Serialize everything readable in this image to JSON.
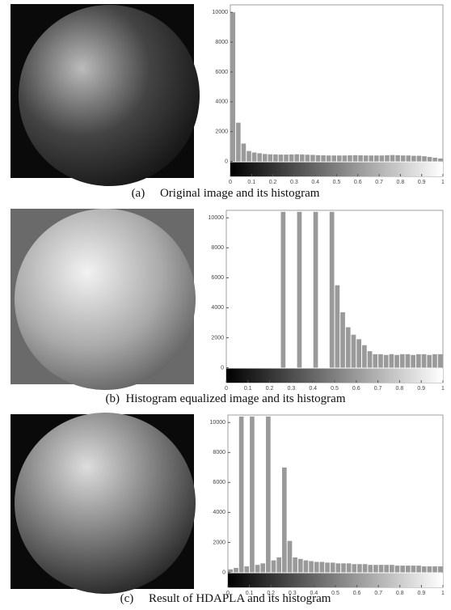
{
  "chart_data": [
    {
      "type": "histogram",
      "title": "(a)     Original image and its histogram",
      "color": "#9a9a9a",
      "bins": [
        0,
        0.025,
        0.05,
        0.075,
        0.1,
        0.125,
        0.15,
        0.175,
        0.2,
        0.225,
        0.25,
        0.275,
        0.3,
        0.325,
        0.35,
        0.375,
        0.4,
        0.425,
        0.45,
        0.475,
        0.5,
        0.525,
        0.55,
        0.575,
        0.6,
        0.625,
        0.65,
        0.675,
        0.7,
        0.725,
        0.75,
        0.775,
        0.8,
        0.825,
        0.85,
        0.875,
        0.9,
        0.925,
        0.95,
        0.975,
        1
      ],
      "values": [
        10000,
        2600,
        1200,
        700,
        600,
        550,
        500,
        480,
        470,
        460,
        460,
        470,
        480,
        470,
        450,
        440,
        420,
        410,
        400,
        400,
        400,
        400,
        410,
        420,
        410,
        400,
        400,
        400,
        400,
        420,
        430,
        420,
        400,
        400,
        380,
        380,
        350,
        300,
        250,
        200
      ],
      "xlim": [
        0,
        1
      ],
      "ylim": [
        -1000,
        10500
      ],
      "xticks": [
        0,
        0.1,
        0.2,
        0.3,
        0.4,
        0.5,
        0.6,
        0.7,
        0.8,
        0.9,
        1
      ],
      "yticks": [
        0,
        2000,
        4000,
        6000,
        8000,
        10000
      ]
    },
    {
      "type": "histogram",
      "title": "(b)  Histogram equalized image and its histogram",
      "color": "#9a9a9a",
      "bins": [
        0,
        0.025,
        0.05,
        0.075,
        0.1,
        0.125,
        0.15,
        0.175,
        0.2,
        0.225,
        0.25,
        0.275,
        0.3,
        0.325,
        0.35,
        0.375,
        0.4,
        0.425,
        0.45,
        0.475,
        0.5,
        0.525,
        0.55,
        0.575,
        0.6,
        0.625,
        0.65,
        0.675,
        0.7,
        0.725,
        0.75,
        0.775,
        0.8,
        0.825,
        0.85,
        0.875,
        0.9,
        0.925,
        0.95,
        0.975,
        1
      ],
      "values": [
        0,
        0,
        0,
        0,
        0,
        0,
        0,
        0,
        0,
        0,
        10400,
        0,
        0,
        10400,
        0,
        0,
        10400,
        0,
        0,
        10400,
        5500,
        3700,
        2700,
        2200,
        1900,
        1500,
        1100,
        900,
        900,
        850,
        900,
        850,
        900,
        900,
        850,
        900,
        900,
        850,
        900,
        900
      ],
      "xlim": [
        0,
        1
      ],
      "ylim": [
        -1000,
        10500
      ],
      "xticks": [
        0,
        0.1,
        0.2,
        0.3,
        0.4,
        0.5,
        0.6,
        0.7,
        0.8,
        0.9,
        1
      ],
      "yticks": [
        0,
        2000,
        4000,
        6000,
        8000,
        10000
      ]
    },
    {
      "type": "histogram",
      "title": "(c)     Result of HDAPLA and its histogram",
      "color": "#9a9a9a",
      "bins": [
        0,
        0.025,
        0.05,
        0.075,
        0.1,
        0.125,
        0.15,
        0.175,
        0.2,
        0.225,
        0.25,
        0.275,
        0.3,
        0.325,
        0.35,
        0.375,
        0.4,
        0.425,
        0.45,
        0.475,
        0.5,
        0.525,
        0.55,
        0.575,
        0.6,
        0.625,
        0.65,
        0.675,
        0.7,
        0.725,
        0.75,
        0.775,
        0.8,
        0.825,
        0.85,
        0.875,
        0.9,
        0.925,
        0.95,
        0.975,
        1
      ],
      "values": [
        200,
        300,
        10400,
        400,
        10400,
        500,
        600,
        10400,
        800,
        1000,
        7000,
        2100,
        1000,
        900,
        800,
        750,
        700,
        700,
        650,
        650,
        600,
        600,
        600,
        550,
        550,
        550,
        500,
        500,
        500,
        500,
        500,
        450,
        450,
        450,
        450,
        450,
        400,
        400,
        400,
        400
      ],
      "xlim": [
        0,
        1
      ],
      "ylim": [
        -1000,
        10500
      ],
      "xticks": [
        0,
        0.1,
        0.2,
        0.3,
        0.4,
        0.5,
        0.6,
        0.7,
        0.8,
        0.9,
        1
      ],
      "yticks": [
        0,
        2000,
        4000,
        6000,
        8000,
        10000
      ]
    }
  ]
}
